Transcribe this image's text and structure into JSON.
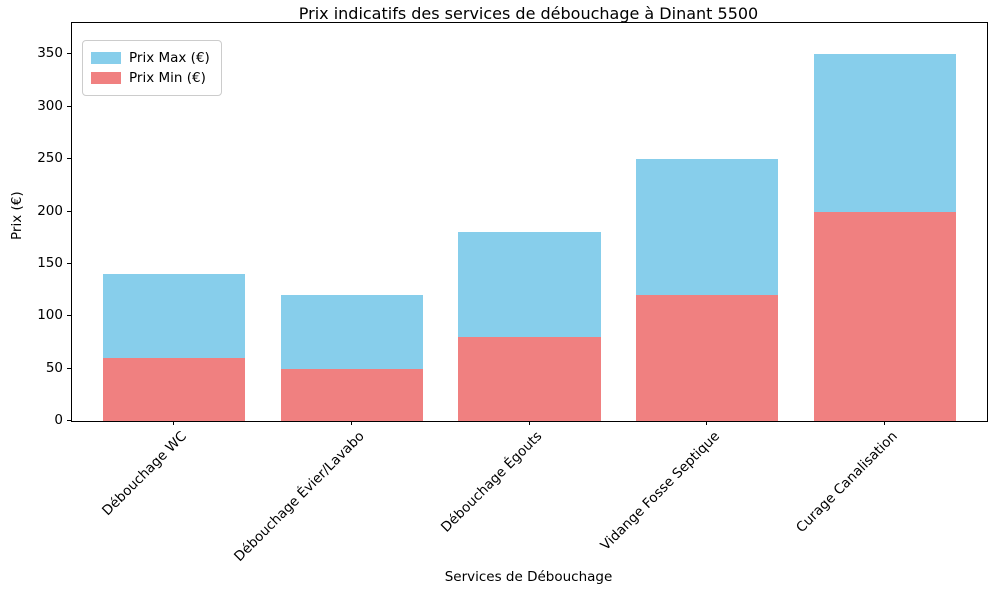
{
  "chart_data": {
    "type": "bar",
    "title": "Prix indicatifs des services de débouchage à Dinant 5500",
    "xlabel": "Services de Débouchage",
    "ylabel": "Prix (€)",
    "categories": [
      "Débouchage WC",
      "Débouchage Évier/Lavabo",
      "Débouchage Égouts",
      "Vidange Fosse Septique",
      "Curage Canalisation"
    ],
    "series": [
      {
        "name": "Prix Max (€)",
        "color": "#87CEEB",
        "values": [
          140,
          120,
          180,
          250,
          350
        ]
      },
      {
        "name": "Prix Min (€)",
        "color": "#F08080",
        "values": [
          60,
          50,
          80,
          120,
          200
        ]
      }
    ],
    "bar_style": "overlaid",
    "ylim": [
      0,
      380
    ],
    "yticks": [
      0,
      50,
      100,
      150,
      200,
      250,
      300,
      350
    ],
    "grid": false,
    "legend_position": "upper left",
    "background_color": "#ffffff",
    "text_color": "#000000"
  }
}
